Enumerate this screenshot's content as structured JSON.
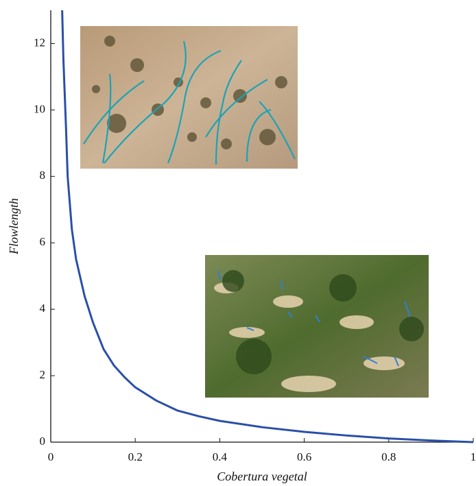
{
  "chart_data": {
    "type": "line",
    "x_label": "Cobertura vegetal",
    "y_label": "Flowlength",
    "xlim": [
      0,
      1
    ],
    "ylim": [
      0,
      13
    ],
    "xticks": [
      0,
      0.2,
      0.4,
      0.6,
      0.8,
      1
    ],
    "yticks": [
      0,
      2,
      4,
      6,
      8,
      10,
      12
    ],
    "x": [
      0.027,
      0.03,
      0.036,
      0.04,
      0.05,
      0.06,
      0.08,
      0.1,
      0.125,
      0.15,
      0.175,
      0.2,
      0.25,
      0.3,
      0.35,
      0.4,
      0.5,
      0.6,
      0.7,
      0.8,
      0.9,
      1
    ],
    "series": [
      {
        "color": "#2a4fa8",
        "values": [
          13,
          11.5,
          9.5,
          8,
          6.4,
          5.5,
          4.4,
          3.6,
          2.8,
          2.3,
          1.95,
          1.65,
          1.25,
          0.95,
          0.78,
          0.64,
          0.45,
          0.31,
          0.2,
          0.11,
          0.05,
          0
        ]
      }
    ]
  }
}
